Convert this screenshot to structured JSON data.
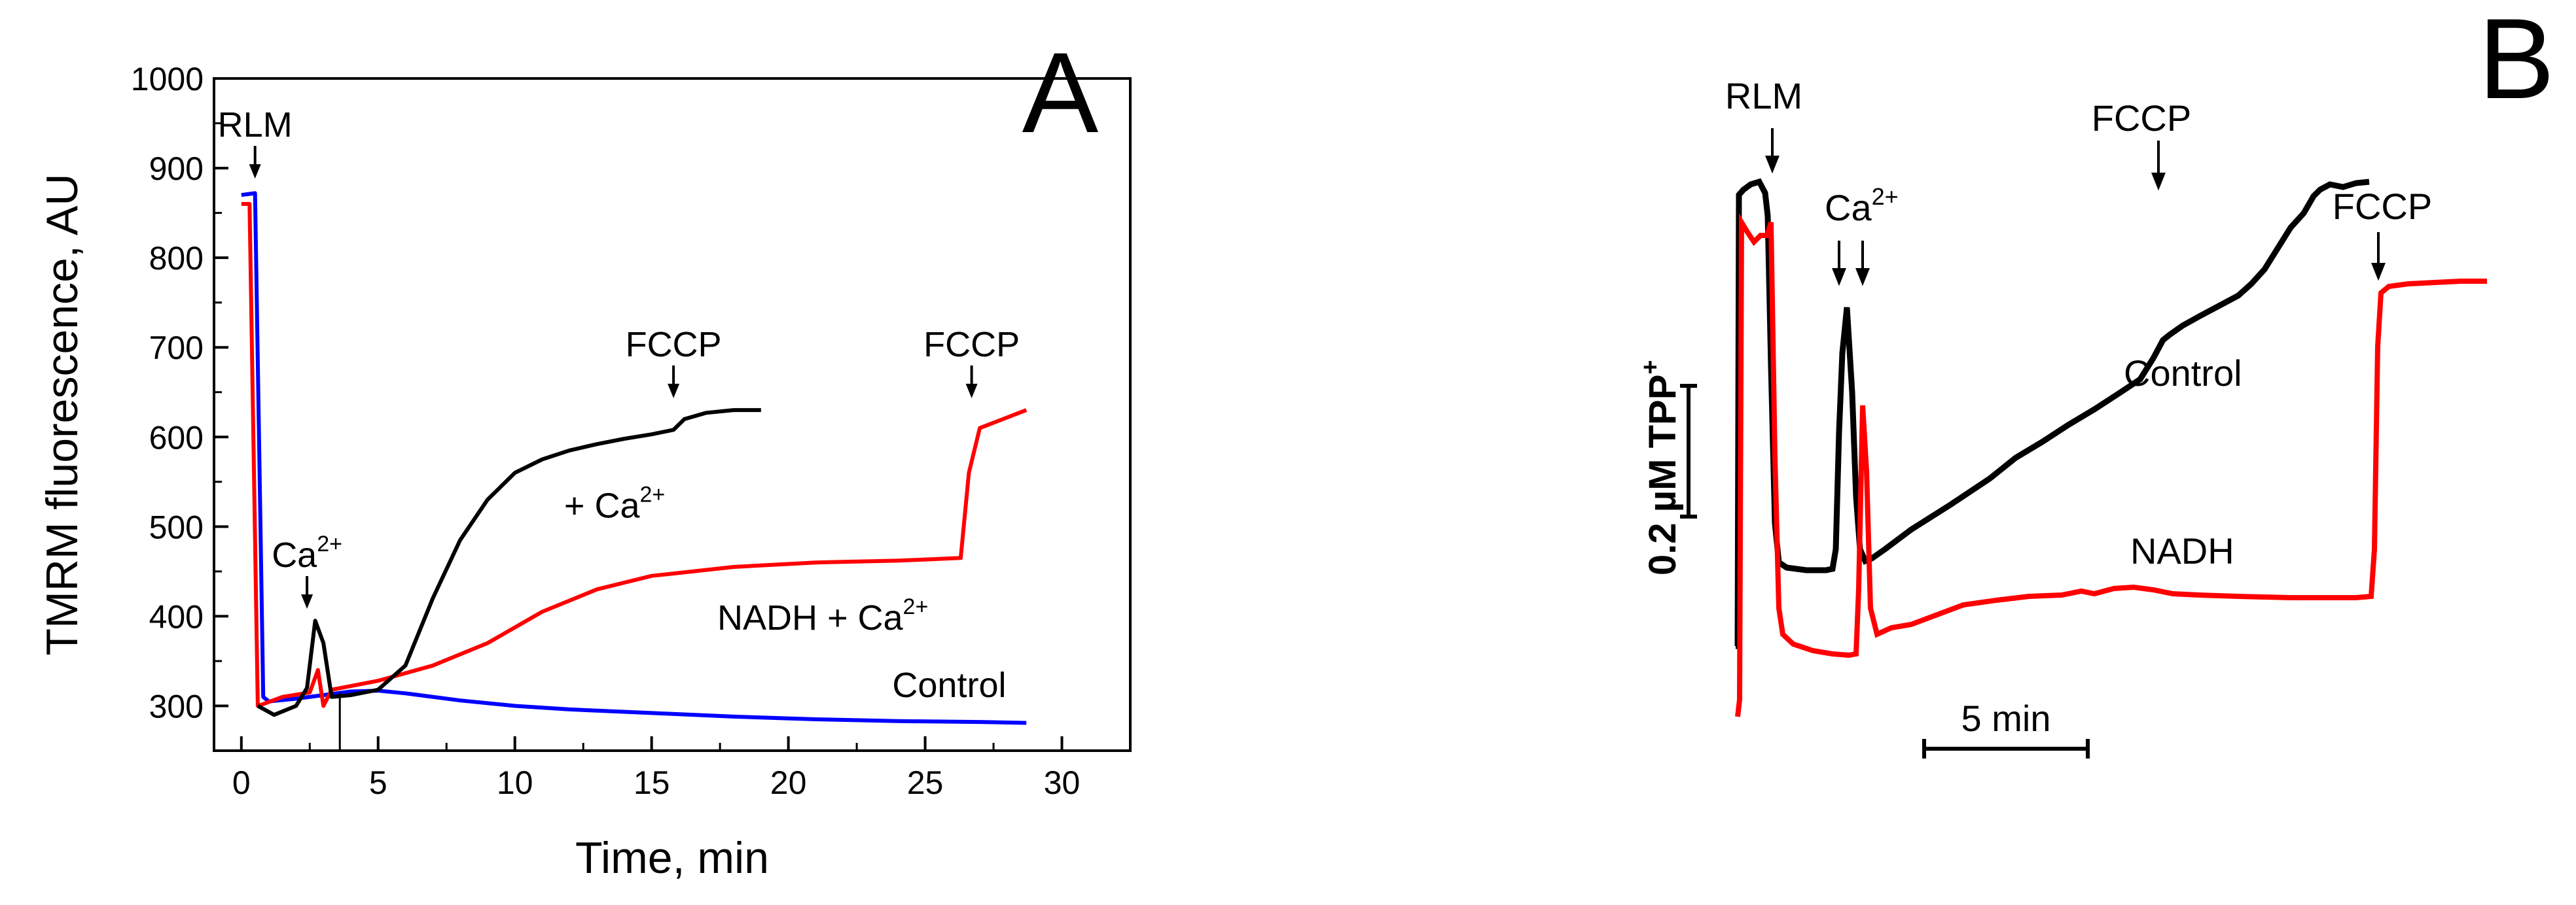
{
  "chart_data": [
    {
      "panel": "A",
      "type": "line",
      "xlabel": "Time, min",
      "ylabel": "TMRM fluorescence, AU",
      "xlim": [
        -1,
        32.5
      ],
      "ylim": [
        250,
        1000
      ],
      "xticks": [
        0,
        5,
        10,
        15,
        20,
        25,
        30
      ],
      "yticks": [
        300,
        400,
        500,
        600,
        700,
        800,
        900,
        1000
      ],
      "grid": false,
      "legend": "none",
      "series": [
        {
          "name": "Control",
          "color": "#0000ff",
          "points": [
            [
              0,
              870
            ],
            [
              0.5,
              872
            ],
            [
              0.7,
              500
            ],
            [
              0.8,
              310
            ],
            [
              1,
              305
            ],
            [
              2,
              308
            ],
            [
              3,
              312
            ],
            [
              4,
              316
            ],
            [
              5,
              317
            ],
            [
              6,
              314
            ],
            [
              8,
              306
            ],
            [
              10,
              300
            ],
            [
              12,
              296
            ],
            [
              15,
              292
            ],
            [
              18,
              288
            ],
            [
              21,
              285
            ],
            [
              24,
              283
            ],
            [
              27,
              282
            ],
            [
              28.7,
              281
            ]
          ]
        },
        {
          "name": "NADH + Ca2+",
          "color": "#ff0000",
          "points": [
            [
              0,
              860
            ],
            [
              0.3,
              860
            ],
            [
              0.6,
              300
            ],
            [
              0.8,
              302
            ],
            [
              1.5,
              310
            ],
            [
              2.5,
              315
            ],
            [
              2.8,
              340
            ],
            [
              3.0,
              300
            ],
            [
              3.3,
              318
            ],
            [
              5,
              328
            ],
            [
              7,
              345
            ],
            [
              9,
              370
            ],
            [
              11,
              405
            ],
            [
              13,
              430
            ],
            [
              15,
              445
            ],
            [
              18,
              455
            ],
            [
              21,
              460
            ],
            [
              24,
              462
            ],
            [
              26.3,
              465
            ],
            [
              26.6,
              560
            ],
            [
              27,
              610
            ],
            [
              28.7,
              630
            ]
          ]
        },
        {
          "name": "+ Ca2+",
          "color": "#000000",
          "points": [
            [
              0.6,
              300
            ],
            [
              1.2,
              290
            ],
            [
              2.0,
              300
            ],
            [
              2.4,
              320
            ],
            [
              2.7,
              395
            ],
            [
              3.0,
              370
            ],
            [
              3.3,
              310
            ],
            [
              4,
              312
            ],
            [
              5,
              318
            ],
            [
              6,
              345
            ],
            [
              7,
              420
            ],
            [
              8,
              485
            ],
            [
              9,
              530
            ],
            [
              10,
              560
            ],
            [
              11,
              575
            ],
            [
              12,
              585
            ],
            [
              13,
              592
            ],
            [
              14,
              598
            ],
            [
              15,
              603
            ],
            [
              15.8,
              608
            ],
            [
              16.2,
              620
            ],
            [
              17,
              627
            ],
            [
              18,
              630
            ],
            [
              19,
              630
            ]
          ]
        }
      ],
      "annotations": [
        {
          "text": "RLM",
          "x": 0.5,
          "y": 935,
          "arrow": true
        },
        {
          "text": "Ca",
          "sup": "2+",
          "x": 2.4,
          "y": 455,
          "arrow": true
        },
        {
          "text": "FCCP",
          "x": 15.8,
          "y": 690,
          "arrow": true
        },
        {
          "text": "FCCP",
          "x": 26.7,
          "y": 690,
          "arrow": true
        },
        {
          "text": "+ Ca",
          "sup": "2+",
          "x": 11.8,
          "y": 510,
          "arrow": false
        },
        {
          "text": "NADH + Ca",
          "sup": "2+",
          "x": 17.4,
          "y": 385,
          "arrow": false
        },
        {
          "text": "Control",
          "x": 23.8,
          "y": 310,
          "arrow": false
        }
      ],
      "panel_label": "A"
    },
    {
      "panel": "B",
      "type": "line",
      "scale_bar_y": "0.2 µM TPP",
      "scale_bar_y_sup": "+",
      "scale_bar_x": "5 min",
      "grid": false,
      "legend": "none",
      "series_labels": [
        "Control",
        "NADH"
      ],
      "annotations": [
        "RLM",
        "Ca",
        "FCCP",
        "FCCP"
      ],
      "annotation_sup": "2+",
      "panel_label": "B"
    }
  ],
  "colors": {
    "control": "#0000ff",
    "nadh": "#ff0000",
    "ca": "#000000"
  }
}
